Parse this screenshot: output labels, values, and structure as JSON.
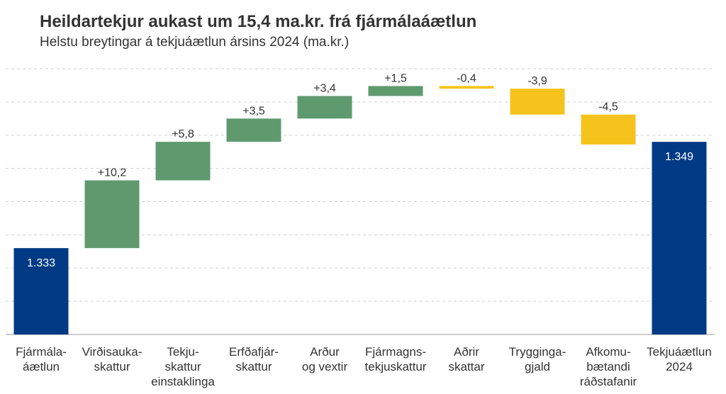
{
  "chart_data": {
    "type": "waterfall",
    "title": "Heildartekjur aukast um 15,4 ma.kr. frá fjármálaáætlun",
    "subtitle": "Helstu breytingar á tekjuáætlun ársins 2024 (ma.kr.)",
    "categories": [
      [
        "Fjármála-",
        "áætlun"
      ],
      [
        "Virðisauka-",
        "skattur"
      ],
      [
        "Tekju-",
        "skattur",
        "einstaklinga"
      ],
      [
        "Erfðafjár-",
        "skattur"
      ],
      [
        "Arður",
        "og vextir"
      ],
      [
        "Fjármagns-",
        "tekjuskattur"
      ],
      [
        "Aðrir",
        "skattar"
      ],
      [
        "Trygginga-",
        "gjald"
      ],
      [
        "Afkomu-",
        "bætandi",
        "ráðstafanir"
      ],
      [
        "Tekjuáætlun",
        "2024"
      ]
    ],
    "measures": [
      "total",
      "relative",
      "relative",
      "relative",
      "relative",
      "relative",
      "relative",
      "relative",
      "relative",
      "total"
    ],
    "values": [
      1333,
      10.2,
      5.8,
      3.5,
      3.4,
      1.5,
      -0.4,
      -3.9,
      -4.5,
      1349
    ],
    "value_labels": [
      "1.333",
      "+10,2",
      "+5,8",
      "+3,5",
      "+3,4",
      "+1,5",
      "-0,4",
      "-3,9",
      "-4,5",
      "1.349"
    ],
    "colors": {
      "total": "#003a84",
      "increase": "#5f9a6f",
      "decrease": "#f6c31c"
    },
    "ylim": [
      1320,
      1360
    ],
    "yticks": [
      1325,
      1330,
      1335,
      1340,
      1345,
      1350,
      1355,
      1360
    ],
    "grid": true
  }
}
